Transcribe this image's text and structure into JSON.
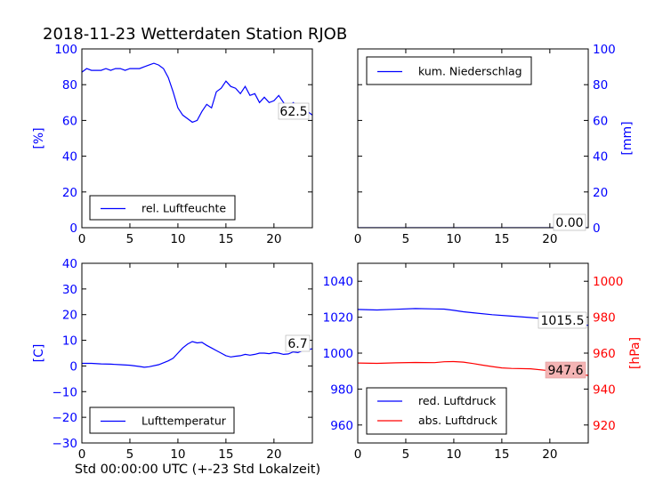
{
  "figure": {
    "title": "2018-11-23 Wetterdaten Station RJOB",
    "xlabel": "Std 00:00:00 UTC (+-23 Std Lokalzeit)"
  },
  "colors": {
    "blue": "#0000ff",
    "red": "#ff0000",
    "label_box": "#ffffff",
    "red_label_box": "#f4b4b4"
  },
  "chart_data": [
    {
      "id": "humidity",
      "type": "line",
      "xlim": [
        0,
        24
      ],
      "xticks": [
        "0",
        "5",
        "10",
        "15",
        "20"
      ],
      "ylim": [
        0,
        100
      ],
      "yticks": [
        "0",
        "20",
        "40",
        "60",
        "80",
        "100"
      ],
      "ylabel": "[%]",
      "legend": "bottom-left",
      "series": [
        {
          "name": "rel. Luftfeuchte",
          "color": "#0000ff",
          "x": [
            0,
            0.5,
            1,
            1.5,
            2,
            2.5,
            3,
            3.5,
            4,
            4.5,
            5,
            5.5,
            6,
            6.5,
            7,
            7.5,
            8,
            8.5,
            9,
            9.5,
            10,
            10.5,
            11,
            11.5,
            12,
            12.5,
            13,
            13.5,
            14,
            14.5,
            15,
            15.5,
            16,
            16.5,
            17,
            17.5,
            18,
            18.5,
            19,
            19.5,
            20,
            20.5,
            21,
            21.5,
            22,
            22.5,
            23,
            23.5,
            24
          ],
          "y": [
            87,
            89,
            88,
            88,
            88,
            89,
            88,
            89,
            89,
            88,
            89,
            89,
            89,
            90,
            91,
            92,
            91,
            89,
            84,
            76,
            67,
            63,
            61,
            59,
            60,
            65,
            69,
            67,
            76,
            78,
            82,
            79,
            78,
            75,
            79,
            74,
            75,
            70,
            73,
            70,
            71,
            74,
            70,
            66,
            70,
            68,
            66,
            65,
            63
          ]
        }
      ],
      "last_value": "62.5"
    },
    {
      "id": "precipitation",
      "type": "line",
      "xlim": [
        0,
        24
      ],
      "xticks": [
        "0",
        "5",
        "10",
        "15",
        "20"
      ],
      "ylim": [
        0,
        100
      ],
      "yticks": [
        "0",
        "20",
        "40",
        "60",
        "80",
        "100"
      ],
      "ylabel": "[mm]",
      "legend": "top-left",
      "series": [
        {
          "name": "kum. Niederschlag",
          "color": "#0000ff",
          "x": [
            0,
            24
          ],
          "y": [
            0,
            0
          ]
        }
      ],
      "last_value": "0.00"
    },
    {
      "id": "temperature",
      "type": "line",
      "xlim": [
        0,
        24
      ],
      "xticks": [
        "0",
        "5",
        "10",
        "15",
        "20"
      ],
      "ylim": [
        -30,
        40
      ],
      "yticks": [
        "−30",
        "−20",
        "−10",
        "0",
        "10",
        "20",
        "30",
        "40"
      ],
      "ylabel": "[C]",
      "legend": "bottom-left",
      "series": [
        {
          "name": "Lufttemperatur",
          "color": "#0000ff",
          "x": [
            0,
            1,
            2,
            3,
            4,
            5,
            6,
            6.5,
            7,
            8,
            9,
            9.5,
            10,
            10.5,
            11,
            11.5,
            12,
            12.5,
            13,
            13.5,
            14,
            14.5,
            15,
            15.5,
            16,
            16.5,
            17,
            17.5,
            18,
            18.5,
            19,
            19.5,
            20,
            20.5,
            21,
            21.5,
            22,
            22.5,
            23,
            23.5,
            24
          ],
          "y": [
            1,
            1,
            0.8,
            0.7,
            0.5,
            0.3,
            -0.2,
            -0.5,
            -0.3,
            0.5,
            2,
            3,
            5,
            7,
            8.5,
            9.5,
            9,
            9.2,
            8,
            7,
            6,
            5,
            4,
            3.5,
            3.8,
            4,
            4.5,
            4.2,
            4.5,
            5,
            5,
            4.8,
            5.2,
            5,
            4.5,
            4.7,
            5.5,
            5.2,
            6,
            6.3,
            6.7
          ]
        }
      ],
      "last_value": "6.7"
    },
    {
      "id": "pressure",
      "type": "line",
      "xlim": [
        0,
        24
      ],
      "xticks": [
        "0",
        "5",
        "10",
        "15",
        "20"
      ],
      "ylim": [
        950,
        1050
      ],
      "yticks": [
        "960",
        "980",
        "1000",
        "1020",
        "1040"
      ],
      "ylim_right": [
        910,
        1010
      ],
      "yticks_right": [
        "920",
        "940",
        "960",
        "980",
        "1000"
      ],
      "ylabel_right": "[hPa]",
      "legend": "bottom-left",
      "series": [
        {
          "name": "red. Luftdruck",
          "color": "#0000ff",
          "axis": "left",
          "x": [
            0,
            2,
            4,
            6,
            8,
            9,
            10,
            11,
            12,
            14,
            16,
            18,
            20,
            22,
            23,
            24
          ],
          "y": [
            1024.3,
            1024.0,
            1024.4,
            1024.8,
            1024.6,
            1024.5,
            1023.8,
            1023.0,
            1022.5,
            1021.4,
            1020.6,
            1019.8,
            1018.9,
            1017.0,
            1015.8,
            1015.5
          ]
        },
        {
          "name": "abs. Luftdruck",
          "color": "#ff0000",
          "axis": "right",
          "x": [
            0,
            2,
            4,
            6,
            8,
            9,
            10,
            11,
            12,
            13,
            14,
            15,
            16,
            18,
            20,
            22,
            23,
            24
          ],
          "y": [
            954.5,
            954.3,
            954.6,
            954.8,
            954.7,
            955.2,
            955.3,
            955.0,
            954.2,
            953.3,
            952.5,
            951.8,
            951.5,
            951.3,
            950.2,
            949.0,
            948.0,
            947.6
          ]
        }
      ],
      "last_value": "1015.5",
      "last_value_right": "947.6"
    }
  ]
}
